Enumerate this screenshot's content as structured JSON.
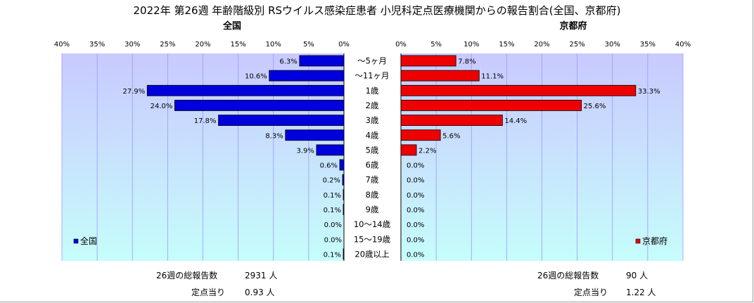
{
  "chart_data": {
    "type": "bar",
    "orientation": "horizontal-butterfly",
    "title": "2022年 第26週 年齢階級別 RSウイルス感染症患者 小児科定点医療機関からの報告割合(全国、京都府)",
    "categories": [
      "～5ヶ月",
      "～11ヶ月",
      "1歳",
      "2歳",
      "3歳",
      "4歳",
      "5歳",
      "6歳",
      "7歳",
      "8歳",
      "9歳",
      "10～14歳",
      "15～19歳",
      "20歳以上"
    ],
    "axis_ticks": [
      "40%",
      "35%",
      "30%",
      "25%",
      "20%",
      "15%",
      "10%",
      "5%",
      "0%"
    ],
    "axis_ticks_right": [
      "0%",
      "5%",
      "10%",
      "15%",
      "20%",
      "25%",
      "30%",
      "35%",
      "40%"
    ],
    "xlim": [
      0,
      40
    ],
    "grid": true,
    "series": [
      {
        "name": "全国",
        "panel_label": "全国",
        "color": "#0000dd",
        "values": [
          6.3,
          10.6,
          27.9,
          24.0,
          17.8,
          8.3,
          3.9,
          0.6,
          0.2,
          0.1,
          0.1,
          0.0,
          0.0,
          0.1
        ],
        "labels": [
          "6.3%",
          "10.6%",
          "27.9%",
          "24.0%",
          "17.8%",
          "8.3%",
          "3.9%",
          "0.6%",
          "0.2%",
          "0.1%",
          "0.1%",
          "0.0%",
          "0.0%",
          "0.1%"
        ],
        "legend_position": "bottom-left"
      },
      {
        "name": "京都府",
        "panel_label": "京都府",
        "color": "#ee0000",
        "values": [
          7.8,
          11.1,
          33.3,
          25.6,
          14.4,
          5.6,
          2.2,
          0.0,
          0.0,
          0.0,
          0.0,
          0.0,
          0.0,
          0.0
        ],
        "labels": [
          "7.8%",
          "11.1%",
          "33.3%",
          "25.6%",
          "14.4%",
          "5.6%",
          "2.2%",
          "0.0%",
          "0.0%",
          "0.0%",
          "0.0%",
          "0.0%",
          "0.0%",
          "0.0%"
        ],
        "legend_position": "bottom-right"
      }
    ],
    "colors": {
      "plot_top": "#c9c9ff",
      "plot_bottom": "#c6fdfb",
      "grid": "#9a9aff"
    }
  },
  "footer": {
    "left": {
      "total_label": "26週の総報告数",
      "total_value": "2931 人",
      "per_label": "定点当り",
      "per_value": "0.93 人"
    },
    "right": {
      "total_label": "26週の総報告数",
      "total_value": "90 人",
      "per_label": "定点当り",
      "per_value": "1.22 人"
    }
  }
}
